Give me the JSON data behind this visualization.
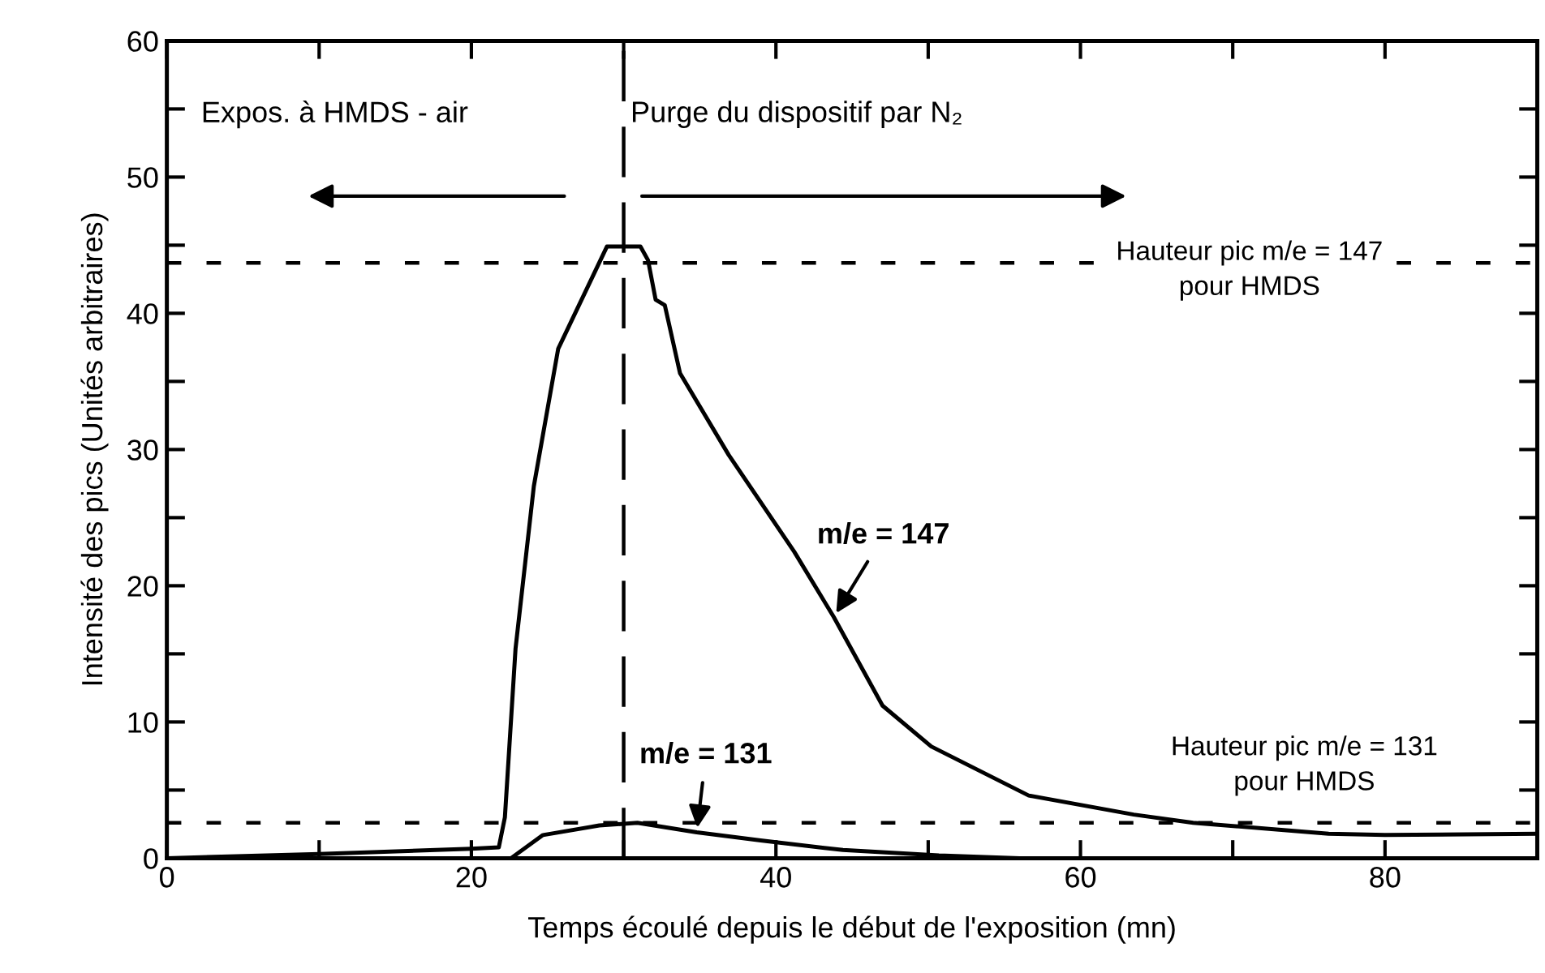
{
  "chart_data": {
    "type": "line",
    "xlabel": "Temps écoulé depuis le début de l'exposition (mn)",
    "ylabel": "Intensité des pics (Unités arbitraires)",
    "xlim": [
      0,
      90
    ],
    "ylim": [
      0,
      60
    ],
    "xticks": [
      0,
      {
        "value": 10,
        "label": null
      },
      20,
      {
        "value": 30,
        "label": null
      },
      40,
      {
        "value": 50,
        "label": null
      },
      60,
      {
        "value": 70,
        "label": null
      },
      80
    ],
    "yticks": [
      0,
      {
        "value": 5,
        "label": null
      },
      10,
      {
        "value": 15,
        "label": null
      },
      20,
      {
        "value": 25,
        "label": null
      },
      30,
      {
        "value": 35,
        "label": null
      },
      40,
      {
        "value": 45,
        "label": null
      },
      50,
      {
        "value": 55,
        "label": null
      },
      60
    ],
    "grid": false,
    "legend": false,
    "marker": "none",
    "line_style": "solid",
    "series": [
      {
        "name": "m/e = 147",
        "color": "#000000",
        "x": [
          0,
          10,
          20,
          21.8,
          22.2,
          22.9,
          24.1,
          25.7,
          28.9,
          31.1,
          31.6,
          32.1,
          32.7,
          33.7,
          36.9,
          41.2,
          43.8,
          47,
          50.2,
          56.6,
          63.5,
          67.4,
          76.3,
          80,
          90
        ],
        "values": [
          0,
          0.3,
          0.7,
          0.8,
          3,
          15.4,
          27.3,
          37.4,
          44.9,
          44.9,
          43.9,
          41,
          40.6,
          35.6,
          29.6,
          22.5,
          17.7,
          11.2,
          8.2,
          4.6,
          3.2,
          2.6,
          1.8,
          1.7,
          1.8
        ]
      },
      {
        "name": "m/e = 131",
        "color": "#000000",
        "x": [
          22.6,
          24.7,
          28.4,
          30.9,
          34.8,
          39,
          44.4,
          50.7,
          56,
          60
        ],
        "values": [
          0,
          1.7,
          2.4,
          2.6,
          1.9,
          1.3,
          0.6,
          0.2,
          0,
          0
        ]
      }
    ],
    "ref_lines": [
      {
        "axis": "x",
        "value": 30,
        "line_style": "dashed",
        "color": "#000000"
      },
      {
        "axis": "y",
        "value": 43.7,
        "line_style": "dotted",
        "color": "#000000"
      },
      {
        "axis": "y",
        "value": 2.6,
        "line_style": "dotted",
        "color": "#000000"
      }
    ],
    "annotations": [
      "Expos. à HMDS - air",
      "Purge du dispositif par N₂",
      "Hauteur pic m/e = 147\npour HMDS",
      "Hauteur pic m/e = 131\npour HMDS"
    ]
  }
}
